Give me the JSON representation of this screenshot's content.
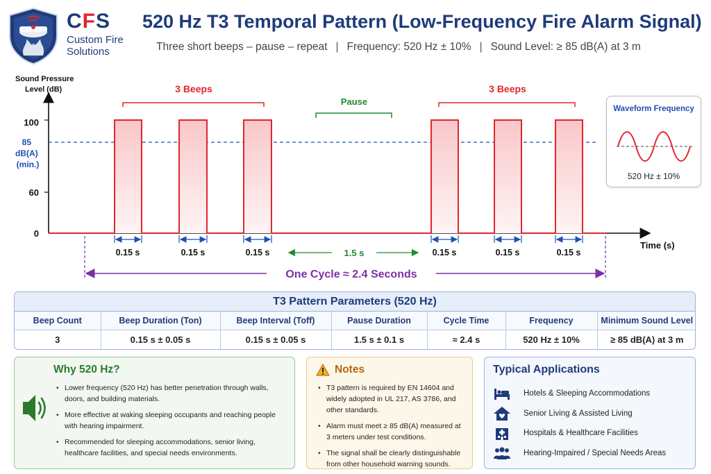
{
  "brand": {
    "cfs": [
      "C",
      "F",
      "S"
    ],
    "name_line1": "Custom Fire",
    "name_line2": "Solutions"
  },
  "header": {
    "title": "520 Hz T3 Temporal Pattern (Low-Frequency Fire Alarm Signal)",
    "subtitle_parts": [
      "Three short beeps – pause – repeat",
      "|",
      "Frequency: 520 Hz ± 10%",
      "|",
      "Sound Level: ≥ 85 dB(A) at 3 m"
    ]
  },
  "diagram": {
    "y_axis_label_line1": "Sound Pressure",
    "y_axis_label_line2": "Level (dB)",
    "x_axis_label": "Time (s)",
    "y_ticks": [
      "100",
      "60",
      "0"
    ],
    "threshold_label": [
      "85",
      "dB(A)",
      "(min.)"
    ],
    "group_label": "3 Beeps",
    "pause_label": "Pause",
    "beep_duration_label": "0.15 s",
    "pause_duration_label": "1.5 s",
    "cycle_label": "One Cycle ≈ 2.4 Seconds",
    "colors": {
      "signal": "#e0262c",
      "threshold": "#1f4fb4",
      "pause": "#1f8a33",
      "cycle": "#7b2fa8",
      "duration": "#1f4fb4"
    }
  },
  "waveform": {
    "title": "Waveform Frequency",
    "label": "520 Hz ± 10%"
  },
  "parameters": {
    "title": "T3 Pattern Parameters (520 Hz)",
    "columns": [
      "Beep Count",
      "Beep Duration (Ton)",
      "Beep Interval (Toff)",
      "Pause Duration",
      "Cycle Time",
      "Frequency",
      "Minimum Sound Level"
    ],
    "values": [
      "3",
      "0.15 s ± 0.05 s",
      "0.15 s ± 0.05 s",
      "1.5 s ± 0.1 s",
      "≈ 2.4 s",
      "520 Hz ± 10%",
      "≥ 85 dB(A) at 3 m"
    ]
  },
  "why": {
    "title": "Why 520 Hz?",
    "items": [
      "Lower frequency (520 Hz) has better penetration through walls, doors, and building materials.",
      "More effective at waking sleeping occupants and reaching people with hearing impairment.",
      "Recommended for sleeping accommodations, senior living, healthcare facilities, and special needs environments."
    ]
  },
  "notes": {
    "title": "Notes",
    "items": [
      "T3 pattern is required by EN 14604 and widely adopted in UL 217, AS 3786, and other standards.",
      "Alarm must meet ≥ 85 dB(A) measured at 3 meters under test conditions.",
      "The signal shall be clearly distinguishable from other household warning sounds."
    ]
  },
  "applications": {
    "title": "Typical Applications",
    "items": [
      {
        "icon": "bed-icon",
        "label": "Hotels & Sleeping Accommodations"
      },
      {
        "icon": "house-heart-icon",
        "label": "Senior Living & Assisted Living"
      },
      {
        "icon": "hospital-icon",
        "label": "Hospitals & Healthcare Facilities"
      },
      {
        "icon": "people-icon",
        "label": "Hearing-Impaired / Special Needs Areas"
      }
    ]
  }
}
